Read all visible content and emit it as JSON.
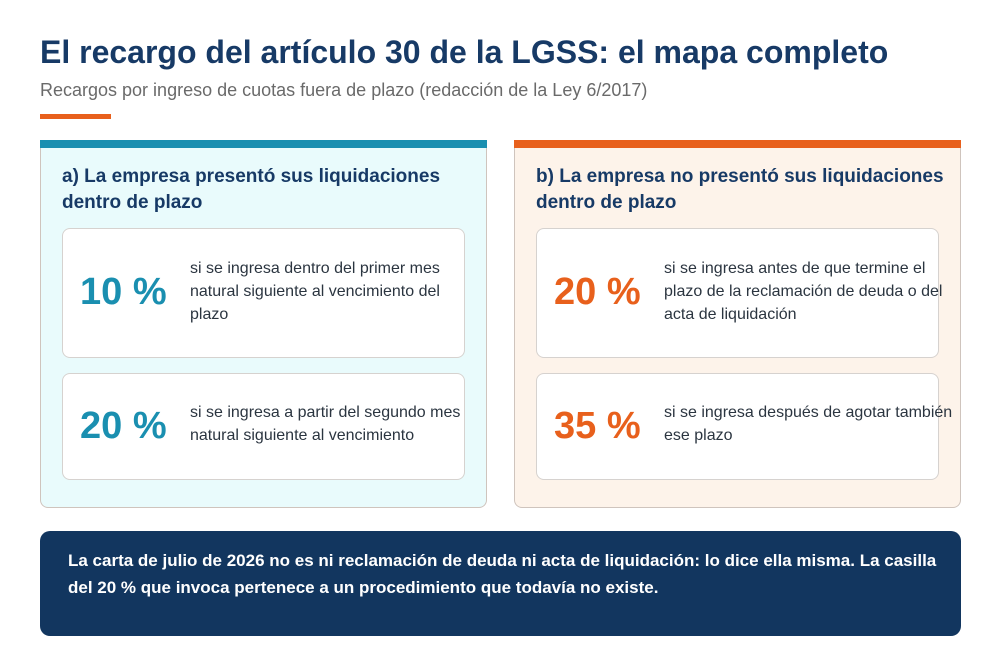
{
  "header": {
    "title": "El recargo del artículo 30 de la LGSS: el mapa completo",
    "subtitle": "Recargos por ingreso de cuotas fuera de plazo (redacción de la Ley 6/2017)"
  },
  "panel_a": {
    "heading": "a) La empresa presentó sus liquidaciones dentro de plazo",
    "accent_color": "#1a8fb0",
    "items": [
      {
        "percent": "10 %",
        "text": "si se ingresa dentro del primer mes natural siguiente al vencimiento del plazo"
      },
      {
        "percent": "20 %",
        "text": "si se ingresa a partir del segundo mes natural siguiente al vencimiento"
      }
    ]
  },
  "panel_b": {
    "heading": "b) La empresa no presentó sus liquidaciones dentro de plazo",
    "accent_color": "#e8601c",
    "items": [
      {
        "percent": "20 %",
        "text": "si se ingresa antes de que termine el plazo de la reclamación de deuda o del acta de liquidación"
      },
      {
        "percent": "35 %",
        "text": "si se ingresa después de agotar también ese plazo"
      }
    ]
  },
  "note": {
    "text": "La carta de julio de 2026 no es ni reclamación de deuda ni acta de liquidación: lo dice ella misma. La casilla del 20 % que invoca pertenece a un procedimiento que todavía no existe."
  },
  "colors": {
    "title": "#173a66",
    "note_background": "#12365f",
    "panel_a_background": "#e9fbfc",
    "panel_b_background": "#fdf3ea"
  }
}
